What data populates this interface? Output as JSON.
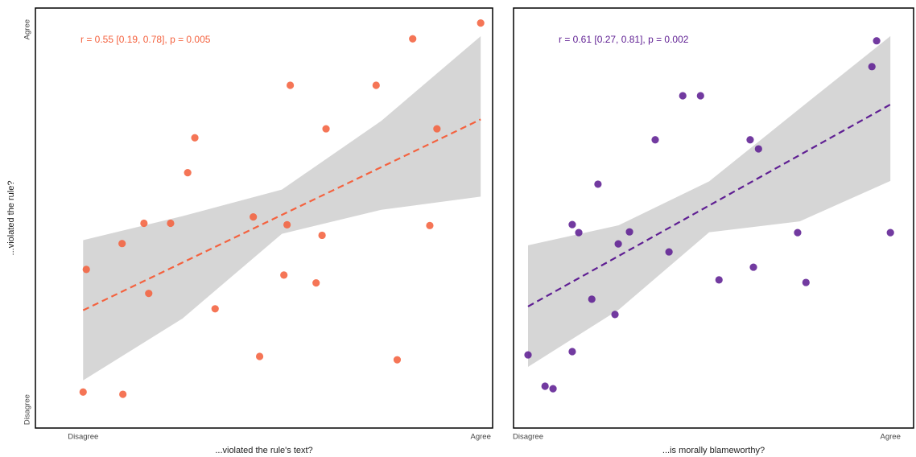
{
  "chart_data": [
    {
      "type": "scatter",
      "x_label": "...violated the rule's text?",
      "y_label": "...violated the rule?",
      "annotation": "r = 0.55 [0.19, 0.78], p = 0.005",
      "color": "#f4623f",
      "x": [
        0,
        10,
        0.8,
        9.8,
        15.3,
        16.5,
        22,
        26.3,
        28.1,
        33.2,
        42.8,
        44.4,
        50.5,
        51.3,
        52.1,
        58.6,
        60.1,
        61.1,
        73.7,
        79,
        82.9,
        87.2,
        89,
        100
      ],
      "y": [
        0.6,
        0,
        33.3,
        40.2,
        45.6,
        26.9,
        45.6,
        59.1,
        68.4,
        22.8,
        47.3,
        10.1,
        31.8,
        45.2,
        82.4,
        29.7,
        42.4,
        70.8,
        82.4,
        9.2,
        94.8,
        45,
        70.8,
        99
      ],
      "fit_x": [
        0,
        100
      ],
      "fit_y": [
        22.4,
        73.3
      ],
      "ci_x": [
        0,
        25,
        50,
        75,
        100
      ],
      "ci_lower": [
        3.7,
        20.2,
        42.8,
        49.2,
        52.7
      ],
      "ci_upper": [
        41.1,
        47.5,
        54.6,
        72.9,
        95.5
      ],
      "xlim": [
        -12,
        103
      ],
      "ylim": [
        -9,
        103
      ],
      "xticks": [
        {
          "value": 0,
          "label": "Disagree"
        },
        {
          "value": 100,
          "label": "Agree"
        }
      ],
      "yticks": [
        {
          "value": 0,
          "label": "Disagree"
        },
        {
          "value": 100,
          "label": "Agree"
        }
      ]
    },
    {
      "type": "scatter",
      "x_label": "...is morally blameworthy?",
      "annotation": "r = 0.61 [0.27, 0.81], p = 0.002",
      "color": "#5f1f93",
      "x": [
        0,
        4.7,
        6.9,
        12.2,
        12.2,
        14,
        17.6,
        19.3,
        24,
        24.9,
        28,
        35.1,
        38.9,
        42.7,
        47.6,
        52.7,
        61.3,
        62.2,
        63.6,
        74.4,
        76.7,
        94.9,
        96.2,
        100
      ],
      "y": [
        9.3,
        0.7,
        0,
        45.1,
        10.2,
        42.9,
        24.6,
        56.2,
        20.4,
        39.8,
        43.1,
        68.4,
        37.6,
        80.5,
        80.5,
        29.9,
        68.4,
        33.4,
        65.9,
        42.9,
        29.2,
        88.5,
        95.6,
        42.9
      ],
      "fit_x": [
        0,
        100
      ],
      "fit_y": [
        22.6,
        78.1
      ],
      "ci_x": [
        0,
        25,
        50,
        75,
        100
      ],
      "ci_lower": [
        6,
        21.7,
        43,
        46,
        57.1
      ],
      "ci_upper": [
        39.4,
        44.9,
        57,
        77,
        96.9
      ],
      "xlim": [
        -4,
        106.4
      ],
      "ylim": [
        -10.8,
        104.6
      ],
      "xticks": [
        {
          "value": 0,
          "label": "Disagree"
        },
        {
          "value": 100,
          "label": "Agree"
        }
      ]
    }
  ]
}
